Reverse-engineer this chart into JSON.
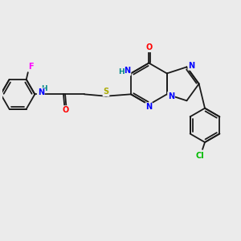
{
  "bg_color": "#ebebeb",
  "bond_color": "#1a1a1a",
  "atom_colors": {
    "N": "#0000ff",
    "O": "#ff0000",
    "S": "#aaaa00",
    "F": "#ff00ff",
    "Cl": "#00bb00",
    "H": "#008888",
    "C": "#1a1a1a"
  },
  "font_size": 7.0,
  "lw": 1.3
}
